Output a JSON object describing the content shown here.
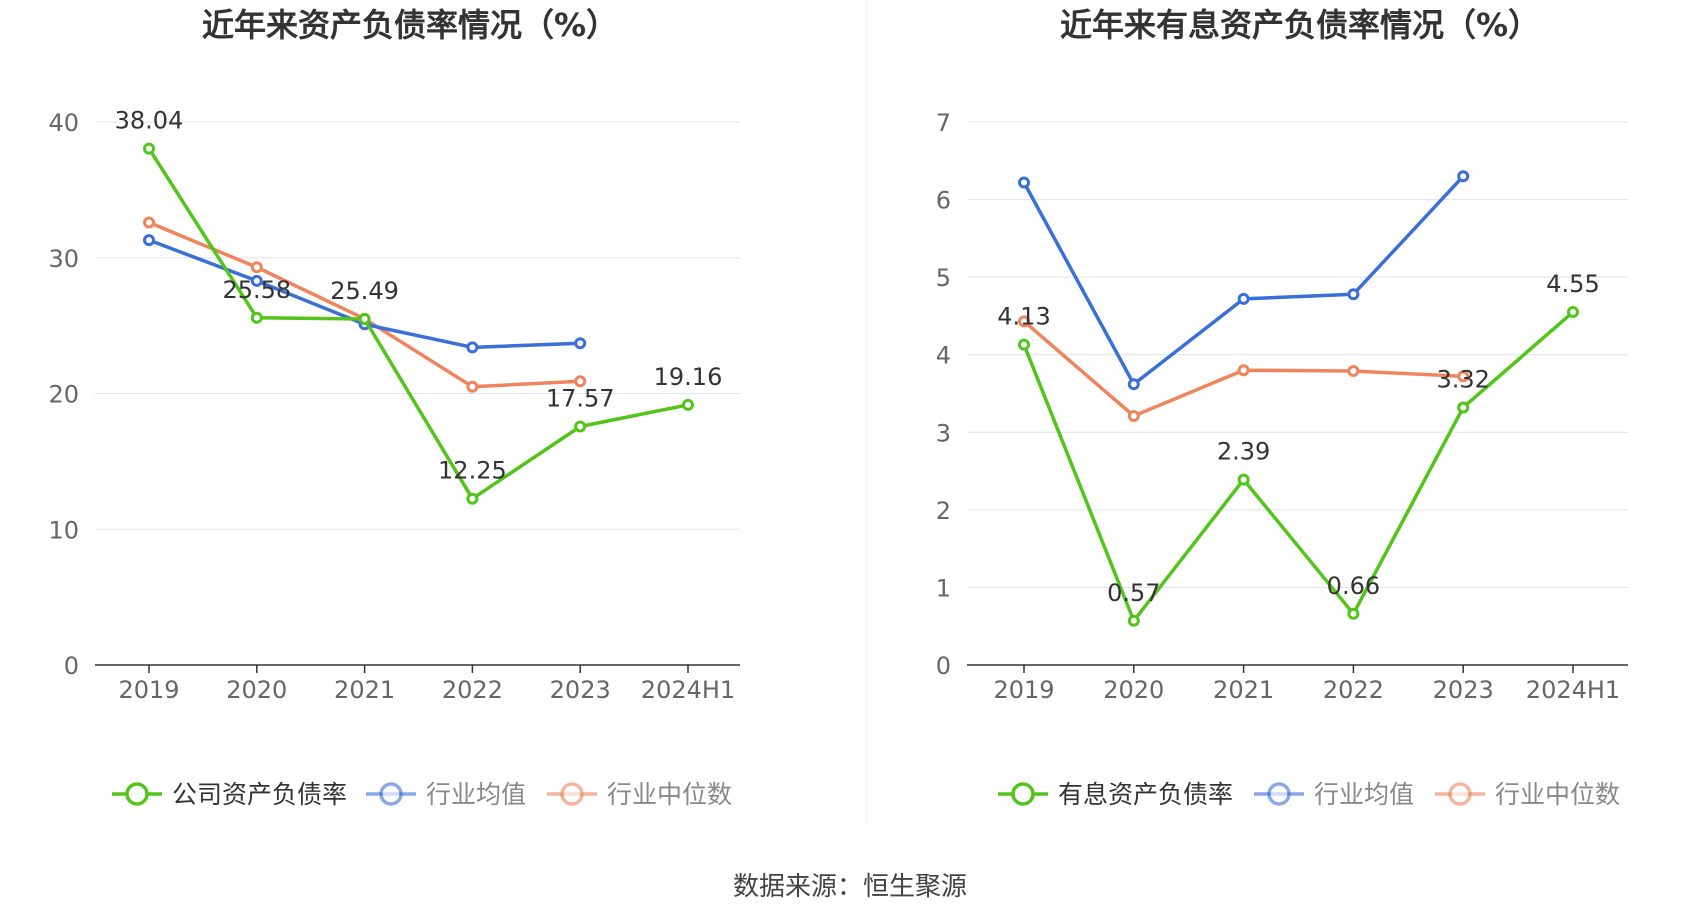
{
  "source": "数据来源：恒生聚源",
  "chart_data": [
    {
      "type": "line",
      "title": "近年来资产负债率情况（%）",
      "categories": [
        "2019",
        "2020",
        "2021",
        "2022",
        "2023",
        "2024H1"
      ],
      "y_ticks": [
        "0",
        "10",
        "20",
        "30",
        "40"
      ],
      "ylim": [
        0,
        40
      ],
      "grid": true,
      "legend_position": "bottom",
      "series": [
        {
          "name": "公司资产负债率",
          "color": "#52c41a",
          "values": [
            38.04,
            25.58,
            25.49,
            12.25,
            17.57,
            19.16
          ],
          "labels": [
            "38.04",
            "25.58",
            "25.49",
            "12.25",
            "17.57",
            "19.16"
          ]
        },
        {
          "name": "行业均值",
          "color": "#3a6fd8",
          "values": [
            31.3,
            28.3,
            25.1,
            23.4,
            23.7,
            null
          ]
        },
        {
          "name": "行业中位数",
          "color": "#f0845c",
          "values": [
            32.6,
            29.3,
            25.5,
            20.5,
            20.9,
            null
          ]
        }
      ]
    },
    {
      "type": "line",
      "title": "近年来有息资产负债率情况（%）",
      "categories": [
        "2019",
        "2020",
        "2021",
        "2022",
        "2023",
        "2024H1"
      ],
      "y_ticks": [
        "0",
        "1",
        "2",
        "3",
        "4",
        "5",
        "6",
        "7"
      ],
      "ylim": [
        0,
        7
      ],
      "grid": true,
      "legend_position": "bottom",
      "series": [
        {
          "name": "有息资产负债率",
          "color": "#52c41a",
          "values": [
            4.13,
            0.57,
            2.39,
            0.66,
            3.32,
            4.55
          ],
          "labels": [
            "4.13",
            "0.57",
            "2.39",
            "0.66",
            "3.32",
            "4.55"
          ]
        },
        {
          "name": "行业均值",
          "color": "#3a6fd8",
          "values": [
            6.22,
            3.62,
            4.72,
            4.78,
            6.3,
            null
          ]
        },
        {
          "name": "行业中位数",
          "color": "#f0845c",
          "values": [
            4.43,
            3.21,
            3.8,
            3.79,
            3.72,
            null
          ]
        }
      ]
    }
  ]
}
